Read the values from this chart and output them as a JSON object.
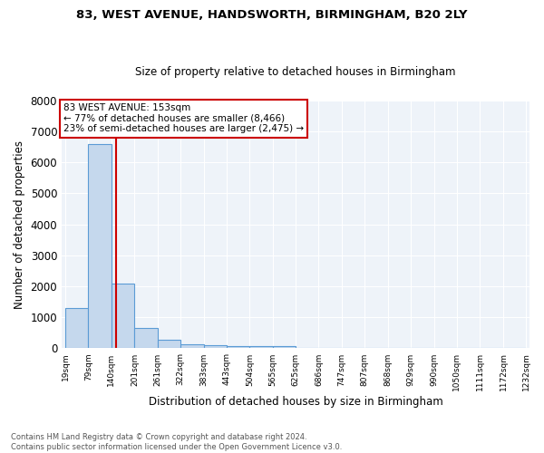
{
  "title1": "83, WEST AVENUE, HANDSWORTH, BIRMINGHAM, B20 2LY",
  "title2": "Size of property relative to detached houses in Birmingham",
  "xlabel": "Distribution of detached houses by size in Birmingham",
  "ylabel": "Number of detached properties",
  "footer1": "Contains HM Land Registry data © Crown copyright and database right 2024.",
  "footer2": "Contains public sector information licensed under the Open Government Licence v3.0.",
  "annotation_line1": "83 WEST AVENUE: 153sqm",
  "annotation_line2": "← 77% of detached houses are smaller (8,466)",
  "annotation_line3": "23% of semi-detached houses are larger (2,475) →",
  "property_size": 153,
  "bar_edges": [
    19,
    79,
    140,
    201,
    261,
    322,
    383,
    443,
    504,
    565,
    625,
    686,
    747,
    807,
    868,
    929,
    990,
    1050,
    1111,
    1172,
    1232
  ],
  "bar_heights": [
    1300,
    6600,
    2100,
    650,
    290,
    130,
    90,
    75,
    70,
    65,
    0,
    0,
    0,
    0,
    0,
    0,
    0,
    0,
    0,
    0
  ],
  "tick_labels": [
    "19sqm",
    "79sqm",
    "140sqm",
    "201sqm",
    "261sqm",
    "322sqm",
    "383sqm",
    "443sqm",
    "504sqm",
    "565sqm",
    "625sqm",
    "686sqm",
    "747sqm",
    "807sqm",
    "868sqm",
    "929sqm",
    "990sqm",
    "1050sqm",
    "1111sqm",
    "1172sqm",
    "1232sqm"
  ],
  "bar_color": "#c5d8ed",
  "bar_edge_color": "#5b9bd5",
  "ref_line_color": "#cc0000",
  "background_color": "#eef3f9",
  "annotation_box_color": "#ffffff",
  "annotation_box_edge": "#cc0000",
  "ylim": [
    0,
    8000
  ],
  "yticks": [
    0,
    1000,
    2000,
    3000,
    4000,
    5000,
    6000,
    7000,
    8000
  ]
}
